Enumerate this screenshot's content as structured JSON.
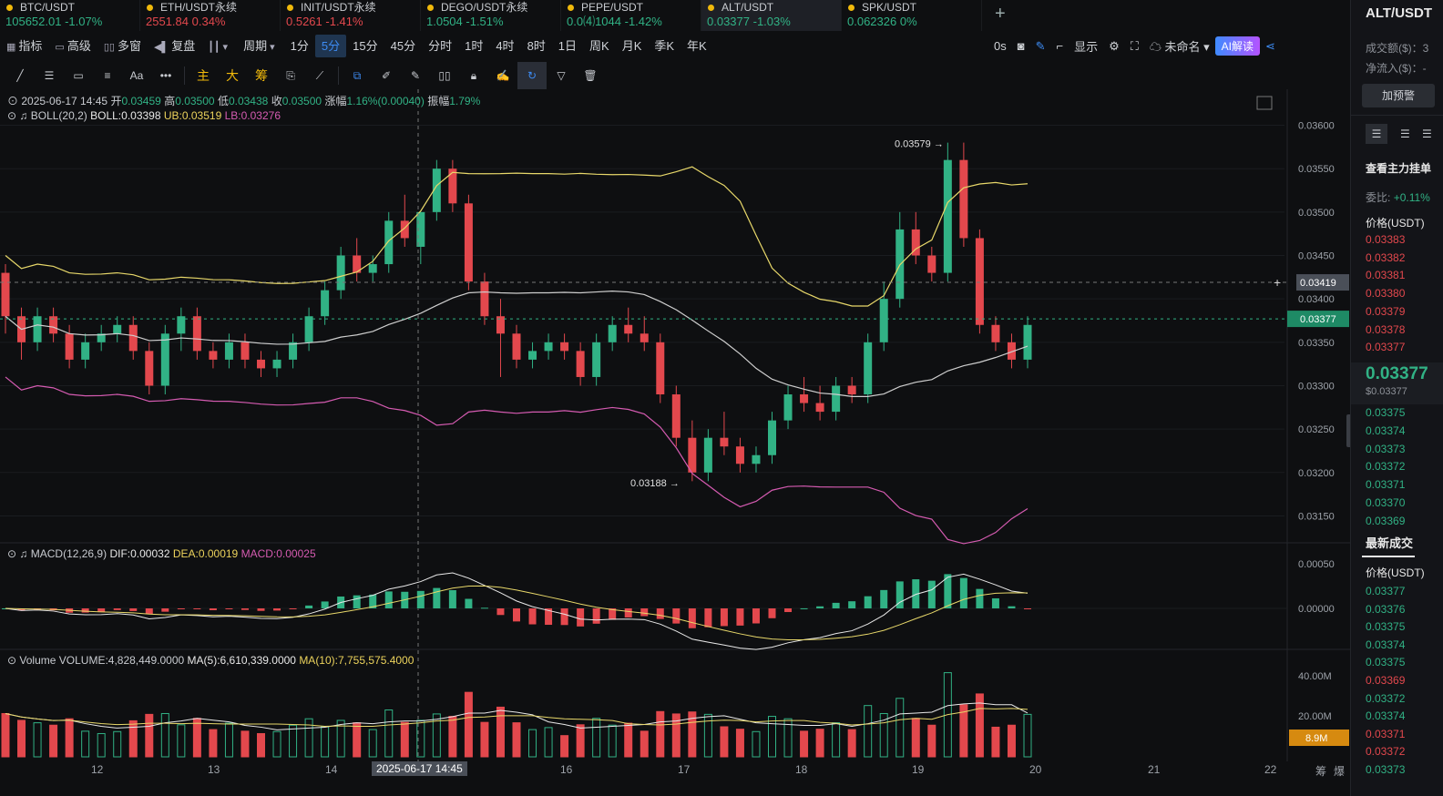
{
  "tabs": [
    {
      "name": "BTC/USDT",
      "price": "105652.01",
      "change": "-1.07%",
      "color": "green"
    },
    {
      "name": "ETH/USDT永续",
      "price": "2551.84",
      "change": "0.34%",
      "color": "red"
    },
    {
      "name": "INIT/USDT永续",
      "price": "0.5261",
      "change": "-1.41%",
      "color": "red"
    },
    {
      "name": "DEGO/USDT永续",
      "price": "1.0504",
      "change": "-1.51%",
      "color": "green"
    },
    {
      "name": "PEPE/USDT",
      "price": "0.0⑷1044",
      "change": "-1.42%",
      "color": "green"
    },
    {
      "name": "ALT/USDT",
      "price": "0.03377",
      "change": "-1.03%",
      "color": "green"
    },
    {
      "name": "SPK/USDT",
      "price": "0.062326",
      "change": "0%",
      "color": "green"
    }
  ],
  "add_tab": "+",
  "toolbar": {
    "indicator": "指标",
    "advanced": "高级",
    "multi": "多窗",
    "replay": "复盘",
    "period": "周期",
    "intervals": [
      "1分",
      "5分",
      "15分",
      "45分",
      "分时",
      "1时",
      "4时",
      "8时",
      "1日",
      "周K",
      "月K",
      "季K",
      "年K"
    ],
    "selected_interval": "5分"
  },
  "toolbar_right": {
    "seconds": "0s",
    "display": "显示",
    "unnamed": "未命名",
    "ai": "AI解读"
  },
  "draw_tools": {
    "font": "Aa",
    "more": "•••",
    "main": "主",
    "big": "大",
    "chip": "筹"
  },
  "ohlc": {
    "date": "2025-06-17 14:45",
    "open_label": "开",
    "open": "0.03459",
    "high_label": "高",
    "high": "0.03500",
    "low_label": "低",
    "low": "0.03438",
    "close_label": "收",
    "close": "0.03500",
    "amp_label": "涨幅",
    "amp": "1.16%(0.00040)",
    "swing_label": "振幅",
    "swing": "1.79%"
  },
  "boll": {
    "label": "BOLL(20,2)",
    "mid": "BOLL:0.03398",
    "ub": "UB:0.03519",
    "lb": "LB:0.03276"
  },
  "macd": {
    "label": "MACD(12,26,9)",
    "dif": "DIF:0.00032",
    "dea": "DEA:0.00019",
    "macd": "MACD:0.00025"
  },
  "volume": {
    "label": "Volume",
    "vol": "VOLUME:4,828,449.0000",
    "ma5": "MA(5):6,610,339.0000",
    "ma10": "MA(10):7,755,575.4000"
  },
  "price_axis": [
    "0.03600",
    "0.03550",
    "0.03500",
    "0.03450",
    "0.03400",
    "0.03350",
    "0.03300",
    "0.03250",
    "0.03200",
    "0.03150"
  ],
  "price_marks": {
    "crosshair": "0.03419",
    "last": "0.03377",
    "high": "0.03579",
    "low": "0.03188"
  },
  "macd_axis": [
    "0.00050",
    "0.00000"
  ],
  "vol_axis": [
    "40.00M",
    "20.00M"
  ],
  "vol_mark": "8.9M",
  "x_axis": [
    "12",
    "13",
    "14",
    "16",
    "17",
    "18",
    "19",
    "20",
    "21",
    "22"
  ],
  "x_cursor": "2025-06-17 14:45",
  "x_icons": [
    "筹",
    "爆"
  ],
  "colors": {
    "up": "#31b285",
    "down": "#e3484d",
    "boll_mid": "#cfcfcf",
    "boll_ub": "#e8d86a",
    "boll_lb": "#d55bb1",
    "accent": "#3d8bf2"
  },
  "sidebar": {
    "title": "ALT/USDT",
    "turnover_label": "成交额($)：3",
    "netflow_label": "净流入($)：-",
    "alert_button": "加预警",
    "orderbook_title": "查看主力挂单",
    "ratio_label": "委比:",
    "ratio_value": "+0.11%",
    "price_header": "价格(USDT)",
    "asks": [
      "0.03383",
      "0.03382",
      "0.03381",
      "0.03380",
      "0.03379",
      "0.03378",
      "0.03377"
    ],
    "mid_price": "0.03377",
    "mid_usd": "$0.03377",
    "bids": [
      "0.03375",
      "0.03374",
      "0.03373",
      "0.03372",
      "0.03371",
      "0.03370",
      "0.03369"
    ],
    "trades_title": "最新成交",
    "trades_header": "价格(USDT)",
    "trades": [
      {
        "p": "0.03377",
        "c": "green"
      },
      {
        "p": "0.03376",
        "c": "green"
      },
      {
        "p": "0.03375",
        "c": "green"
      },
      {
        "p": "0.03374",
        "c": "green"
      },
      {
        "p": "0.03375",
        "c": "green"
      },
      {
        "p": "0.03369",
        "c": "red"
      },
      {
        "p": "0.03372",
        "c": "green"
      },
      {
        "p": "0.03374",
        "c": "green"
      },
      {
        "p": "0.03371",
        "c": "red"
      },
      {
        "p": "0.03372",
        "c": "red"
      },
      {
        "p": "0.03373",
        "c": "green"
      }
    ]
  },
  "chart_data": {
    "type": "candlestick",
    "interval": "5分",
    "x_ticks": [
      "12",
      "13",
      "14",
      "16",
      "17",
      "18",
      "19",
      "20",
      "21",
      "22"
    ],
    "ylim": [
      0.0314,
      0.0361
    ],
    "candles": [
      [
        0.0343,
        0.0344,
        0.0336,
        0.0338
      ],
      [
        0.0338,
        0.0339,
        0.0333,
        0.0335
      ],
      [
        0.0335,
        0.0339,
        0.0334,
        0.0338
      ],
      [
        0.0338,
        0.0339,
        0.0335,
        0.0336
      ],
      [
        0.0336,
        0.0337,
        0.0332,
        0.0333
      ],
      [
        0.0333,
        0.0336,
        0.0332,
        0.0335
      ],
      [
        0.0335,
        0.0337,
        0.0334,
        0.0336
      ],
      [
        0.0336,
        0.0338,
        0.0335,
        0.0337
      ],
      [
        0.0337,
        0.0338,
        0.0333,
        0.0334
      ],
      [
        0.0334,
        0.0335,
        0.0329,
        0.033
      ],
      [
        0.033,
        0.0337,
        0.0329,
        0.0336
      ],
      [
        0.0336,
        0.0339,
        0.0334,
        0.0338
      ],
      [
        0.0338,
        0.0339,
        0.0333,
        0.0334
      ],
      [
        0.0334,
        0.0335,
        0.0332,
        0.0333
      ],
      [
        0.0333,
        0.0336,
        0.0332,
        0.0335
      ],
      [
        0.0335,
        0.0336,
        0.0332,
        0.0333
      ],
      [
        0.0333,
        0.0334,
        0.0331,
        0.0332
      ],
      [
        0.0332,
        0.0334,
        0.0331,
        0.0333
      ],
      [
        0.0333,
        0.0336,
        0.0332,
        0.0335
      ],
      [
        0.0335,
        0.0339,
        0.0334,
        0.0338
      ],
      [
        0.0338,
        0.0342,
        0.0337,
        0.0341
      ],
      [
        0.0341,
        0.0346,
        0.034,
        0.0345
      ],
      [
        0.0345,
        0.0347,
        0.0342,
        0.0343
      ],
      [
        0.0343,
        0.0345,
        0.0342,
        0.0344
      ],
      [
        0.0344,
        0.035,
        0.0343,
        0.0349
      ],
      [
        0.0349,
        0.0352,
        0.0346,
        0.0347
      ],
      [
        0.0346,
        0.035,
        0.0344,
        0.035
      ],
      [
        0.035,
        0.0356,
        0.0349,
        0.0355
      ],
      [
        0.0355,
        0.0356,
        0.035,
        0.0351
      ],
      [
        0.0351,
        0.0352,
        0.0341,
        0.0342
      ],
      [
        0.0342,
        0.0343,
        0.0337,
        0.0338
      ],
      [
        0.0338,
        0.034,
        0.0331,
        0.0336
      ],
      [
        0.0336,
        0.0337,
        0.0332,
        0.0333
      ],
      [
        0.0333,
        0.0335,
        0.0332,
        0.0334
      ],
      [
        0.0334,
        0.0336,
        0.0333,
        0.0335
      ],
      [
        0.0335,
        0.0336,
        0.0333,
        0.0334
      ],
      [
        0.0334,
        0.0335,
        0.033,
        0.0331
      ],
      [
        0.0331,
        0.0336,
        0.033,
        0.0335
      ],
      [
        0.0335,
        0.0338,
        0.0334,
        0.0337
      ],
      [
        0.0337,
        0.0339,
        0.0335,
        0.0336
      ],
      [
        0.0336,
        0.0338,
        0.0334,
        0.0335
      ],
      [
        0.0335,
        0.0336,
        0.0328,
        0.0329
      ],
      [
        0.0329,
        0.033,
        0.0323,
        0.0324
      ],
      [
        0.0324,
        0.0326,
        0.0319,
        0.032
      ],
      [
        0.032,
        0.0325,
        0.0319,
        0.0324
      ],
      [
        0.0324,
        0.0327,
        0.0322,
        0.0323
      ],
      [
        0.0323,
        0.0324,
        0.032,
        0.0321
      ],
      [
        0.0321,
        0.0323,
        0.032,
        0.0322
      ],
      [
        0.0322,
        0.0327,
        0.0321,
        0.0326
      ],
      [
        0.0326,
        0.033,
        0.0325,
        0.0329
      ],
      [
        0.0329,
        0.0331,
        0.0327,
        0.0328
      ],
      [
        0.0328,
        0.033,
        0.0326,
        0.0327
      ],
      [
        0.0327,
        0.0331,
        0.0326,
        0.033
      ],
      [
        0.033,
        0.0331,
        0.0328,
        0.0329
      ],
      [
        0.0329,
        0.0336,
        0.0328,
        0.0335
      ],
      [
        0.0335,
        0.0342,
        0.0334,
        0.034
      ],
      [
        0.034,
        0.035,
        0.0339,
        0.0348
      ],
      [
        0.0348,
        0.035,
        0.0344,
        0.0345
      ],
      [
        0.0345,
        0.0346,
        0.0342,
        0.0343
      ],
      [
        0.0343,
        0.0358,
        0.0342,
        0.0356
      ],
      [
        0.0356,
        0.0358,
        0.0346,
        0.0347
      ],
      [
        0.0347,
        0.0348,
        0.0336,
        0.0337
      ],
      [
        0.0337,
        0.0338,
        0.0334,
        0.0335
      ],
      [
        0.0335,
        0.0336,
        0.0332,
        0.0333
      ],
      [
        0.0333,
        0.0338,
        0.0332,
        0.0337
      ]
    ]
  }
}
